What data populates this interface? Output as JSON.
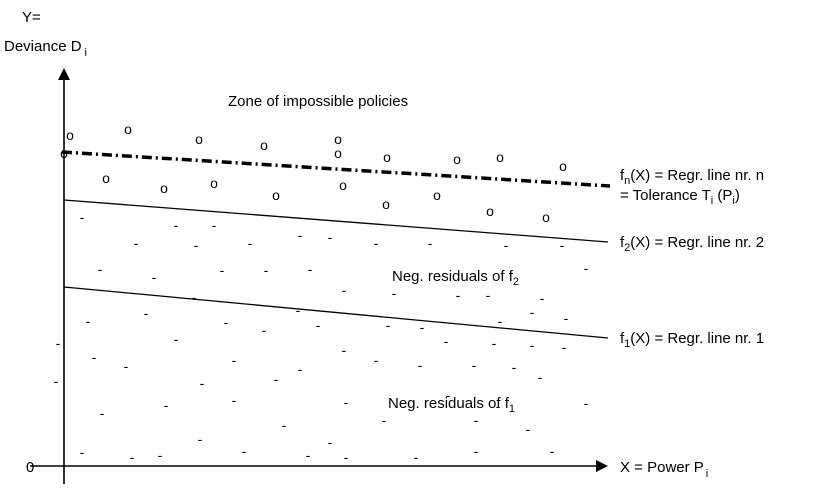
{
  "axes": {
    "y_label_line1": "Y=",
    "y_label_line2": "Deviance D",
    "y_label_sub": "i",
    "origin": "0",
    "x_label": "X = Power P",
    "x_label_sub": "i"
  },
  "zone_label": "Zone of impossible policies",
  "lines": {
    "fn": {
      "name": "f",
      "sub": "n",
      "text": "(X) = Regr. line nr. n",
      "text2_prefix": "= Tolerance T",
      "text2_sub": "i",
      "text2_mid": " (P",
      "text2_sub2": "i",
      "text2_suffix": ")"
    },
    "f2": {
      "name": "f",
      "sub": "2",
      "text": "(X) = Regr. line nr. 2"
    },
    "f1": {
      "name": "f",
      "sub": "1",
      "text": "(X) = Regr. line nr. 1"
    }
  },
  "residual_labels": {
    "f2": {
      "text": "Neg. residuals of f",
      "sub": "2"
    },
    "f1": {
      "text": "Neg. residuals of f",
      "sub": "1"
    }
  },
  "markers": {
    "circle": "o",
    "dash": "-"
  }
}
